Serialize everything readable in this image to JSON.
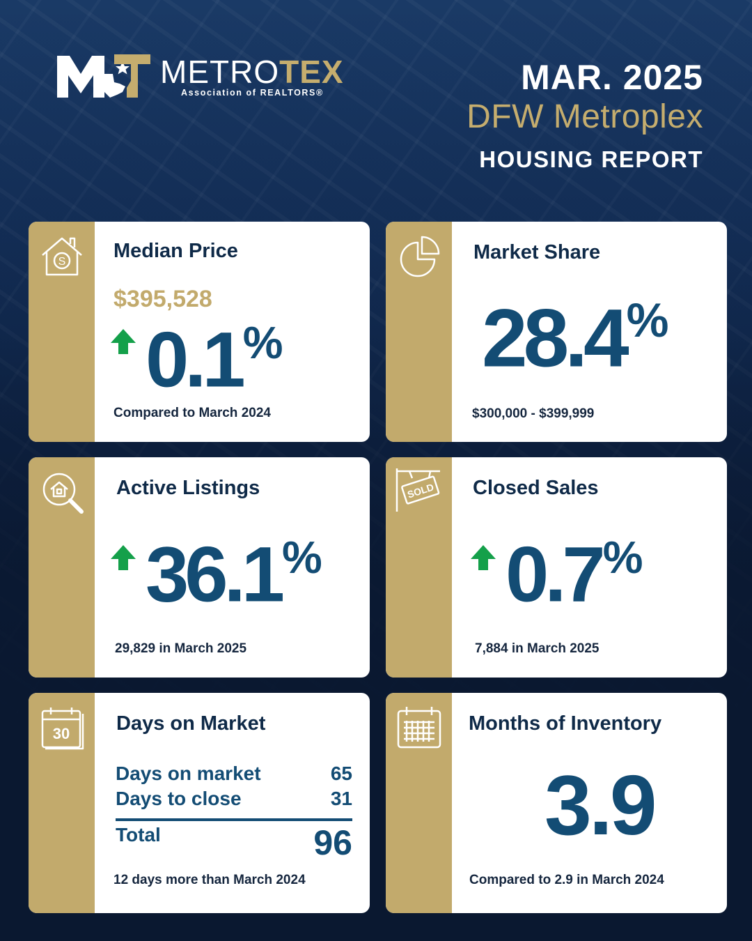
{
  "brand": {
    "name_part1": "METRO",
    "name_part2": "TEX",
    "subtitle": "Association of REALTORS®",
    "colors": {
      "navy": "#0f2a48",
      "gold": "#c2aa6c",
      "blue": "#134c74",
      "green": "#14a04a"
    }
  },
  "header": {
    "date": "MAR. 2025",
    "region": "DFW Metroplex",
    "report": "HOUSING REPORT"
  },
  "cards": {
    "median_price": {
      "title": "Median Price",
      "price": "$395,528",
      "change": "0.1",
      "unit": "%",
      "trend": "up",
      "footnote": "Compared to March 2024",
      "icon": "house-dollar-icon"
    },
    "market_share": {
      "title": "Market Share",
      "value": "28.4",
      "unit": "%",
      "footnote": "$300,000 - $399,999",
      "icon": "pie-chart-icon"
    },
    "active_listings": {
      "title": "Active Listings",
      "change": "36.1",
      "unit": "%",
      "trend": "up",
      "footnote": "29,829 in March 2025",
      "icon": "house-search-icon"
    },
    "closed_sales": {
      "title": "Closed Sales",
      "change": "0.7",
      "unit": "%",
      "trend": "up",
      "footnote": "7,884 in March 2025",
      "icon": "sold-sign-icon",
      "icon_text": "SOLD"
    },
    "days_on_market": {
      "title": "Days on Market",
      "rows": [
        {
          "label": "Days on market",
          "value": "65"
        },
        {
          "label": "Days to close",
          "value": "31"
        }
      ],
      "total_label": "Total",
      "total_value": "96",
      "footnote": "12 days more than March 2024",
      "icon": "calendar-30-icon",
      "icon_text": "30"
    },
    "months_inventory": {
      "title": "Months of Inventory",
      "value": "3.9",
      "footnote": "Compared to 2.9 in March 2024",
      "icon": "calendar-grid-icon"
    }
  }
}
